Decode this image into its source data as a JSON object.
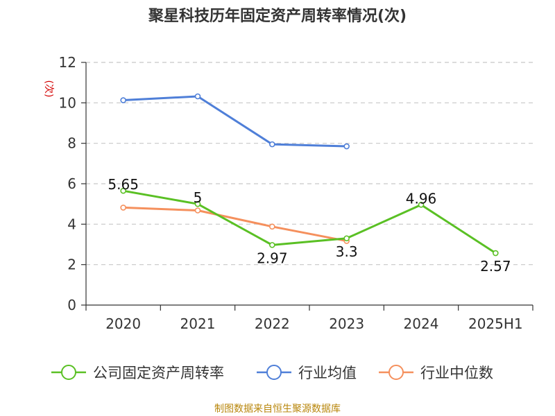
{
  "chart_data": {
    "type": "line",
    "title": "聚星科技历年固定资产周转率情况(次)",
    "ylabel": "(次)",
    "xlabel": "",
    "categories": [
      "2020",
      "2021",
      "2022",
      "2023",
      "2024",
      "2025H1"
    ],
    "ylim": [
      0,
      12
    ],
    "yticks": [
      0,
      2,
      4,
      6,
      8,
      10,
      12
    ],
    "grid": true,
    "legend_position": "bottom",
    "series": [
      {
        "name": "公司固定资产周转率",
        "color": "#5ac024",
        "values": [
          5.65,
          5,
          2.97,
          3.3,
          4.96,
          2.57
        ],
        "labels": [
          "5.65",
          "5",
          "2.97",
          "3.3",
          "4.96",
          "2.57"
        ]
      },
      {
        "name": "行业均值",
        "color": "#4f7fd8",
        "values": [
          10.13,
          10.32,
          7.95,
          7.85,
          null,
          null
        ]
      },
      {
        "name": "行业中位数",
        "color": "#f5905d",
        "values": [
          4.82,
          4.68,
          3.88,
          3.17,
          null,
          null
        ]
      }
    ],
    "source": "制图数据来自恒生聚源数据库",
    "colors": {
      "source_text": "#b8860b",
      "ylabel_text": "#d40000",
      "grid": "#c8c8c8",
      "axis": "#333333"
    }
  }
}
